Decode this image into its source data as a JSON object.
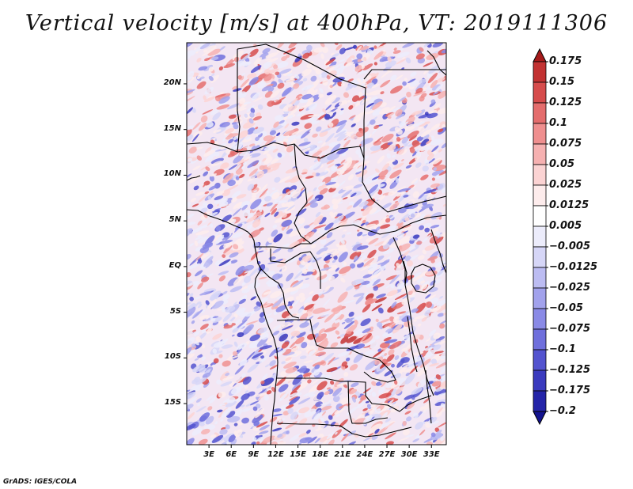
{
  "title": "Vertical velocity [m/s] at 400hPa, VT: 2019111306",
  "credit": "GrADS: IGES/COLA",
  "map": {
    "lat_range": [
      -19.5,
      24.5
    ],
    "lon_range": [
      0,
      35
    ],
    "lat_ticks": [
      {
        "value": 20,
        "label": "20N"
      },
      {
        "value": 15,
        "label": "15N"
      },
      {
        "value": 10,
        "label": "10N"
      },
      {
        "value": 5,
        "label": "5N"
      },
      {
        "value": 0,
        "label": "EQ"
      },
      {
        "value": -5,
        "label": "5S"
      },
      {
        "value": -10,
        "label": "10S"
      },
      {
        "value": -15,
        "label": "15S"
      }
    ],
    "lon_ticks": [
      {
        "value": 3,
        "label": "3E"
      },
      {
        "value": 6,
        "label": "6E"
      },
      {
        "value": 9,
        "label": "9E"
      },
      {
        "value": 12,
        "label": "12E"
      },
      {
        "value": 15,
        "label": "15E"
      },
      {
        "value": 18,
        "label": "18E"
      },
      {
        "value": 21,
        "label": "21E"
      },
      {
        "value": 24,
        "label": "24E"
      },
      {
        "value": 27,
        "label": "27E"
      },
      {
        "value": 30,
        "label": "30E"
      },
      {
        "value": 33,
        "label": "33E"
      }
    ],
    "palette_positive": [
      "#fdecec",
      "#fbd3d3",
      "#f6b1b1",
      "#ef8f8f",
      "#e46d6d",
      "#d64c4c",
      "#c23232",
      "#a51a1a"
    ],
    "palette_negative": [
      "#ececfb",
      "#d6d6f7",
      "#bcbcf2",
      "#a2a2ec",
      "#8a8ae6",
      "#6f6fdc",
      "#5353cf",
      "#3a3abe",
      "#2424a8",
      "#141490"
    ]
  },
  "colorbar": {
    "labels": [
      "0.175",
      "0.15",
      "0.125",
      "0.1",
      "0.075",
      "0.05",
      "0.025",
      "0.0125",
      "0.005",
      "−0.005",
      "−0.0125",
      "−0.025",
      "−0.05",
      "−0.075",
      "−0.1",
      "−0.125",
      "−0.175",
      "−0.2"
    ],
    "colors": [
      "#a51a1a",
      "#c23232",
      "#d64c4c",
      "#e46d6d",
      "#ef8f8f",
      "#f6b1b1",
      "#fbd3d3",
      "#fdecec",
      "#ffffff",
      "#ececfb",
      "#d6d6f7",
      "#bcbcf2",
      "#a2a2ec",
      "#8a8ae6",
      "#6f6fdc",
      "#5353cf",
      "#3a3abe",
      "#2424a8",
      "#141490"
    ]
  }
}
